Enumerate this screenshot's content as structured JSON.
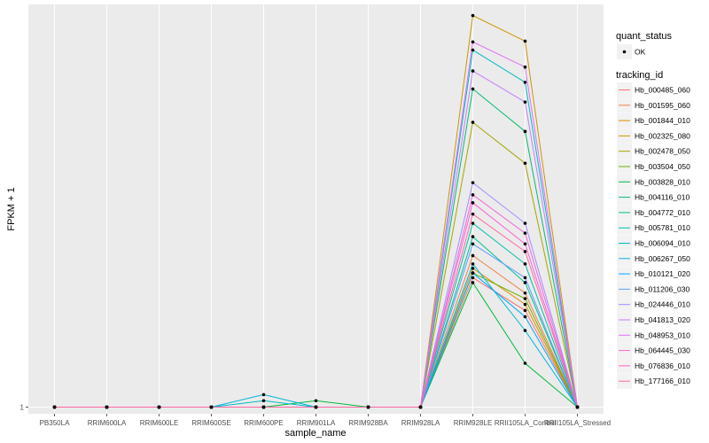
{
  "chart_data": {
    "type": "line",
    "xlabel": "sample_name",
    "ylabel": "FPKM + 1",
    "y_ticks": [
      "1"
    ],
    "categories": [
      "PB350LA",
      "RRIM600LA",
      "RRIM600LE",
      "RRIM600SE",
      "RRIM600PE",
      "RRIM901LA",
      "RRIM928BA",
      "RRIM928LA",
      "RRIM928LE",
      "RRII105LA_Control",
      "RRII105LA_Stressed"
    ],
    "grid": true,
    "legend_position": "right",
    "quant_status_legend": {
      "title": "quant_status",
      "entries": [
        "OK"
      ]
    },
    "tracking_legend_title": "tracking_id",
    "ylim": [
      0.95,
      22.0
    ],
    "series": [
      {
        "name": "Hb_000485_060",
        "color": "#F8766D",
        "values": [
          1,
          1,
          1,
          1,
          1.0,
          1.0,
          1,
          1,
          2.7,
          2.1,
          1
        ]
      },
      {
        "name": "Hb_001595_060",
        "color": "#EE8043",
        "values": [
          1,
          1,
          1,
          1,
          1.0,
          1.0,
          1,
          1,
          3.2,
          2.4,
          1
        ]
      },
      {
        "name": "Hb_001844_010",
        "color": "#E18A00",
        "values": [
          1,
          1,
          1,
          1,
          1.0,
          1.0,
          1,
          1,
          2.9,
          2.2,
          1
        ]
      },
      {
        "name": "Hb_002325_080",
        "color": "#C99800",
        "values": [
          1,
          1,
          1,
          1,
          1.0,
          1.0,
          1,
          1,
          20.2,
          16.6,
          1
        ]
      },
      {
        "name": "Hb_002478_050",
        "color": "#A3A500",
        "values": [
          1,
          1,
          1,
          1,
          1.0,
          1.0,
          1,
          1,
          8.9,
          6.5,
          1
        ]
      },
      {
        "name": "Hb_003504_050",
        "color": "#6BB100",
        "values": [
          1,
          1,
          1,
          1,
          1.0,
          1.0,
          1,
          1,
          2.8,
          2.3,
          1
        ]
      },
      {
        "name": "Hb_003828_010",
        "color": "#00BA38",
        "values": [
          1,
          1,
          1,
          1,
          1.0,
          1.05,
          1,
          1,
          2.6,
          1.4,
          1
        ]
      },
      {
        "name": "Hb_004116_010",
        "color": "#00BE6C",
        "values": [
          1,
          1,
          1,
          1,
          1.0,
          1.0,
          1,
          1,
          11.5,
          8.3,
          1
        ]
      },
      {
        "name": "Hb_004772_010",
        "color": "#00C08E",
        "values": [
          1,
          1,
          1,
          1,
          1.0,
          1.0,
          1,
          1,
          3.7,
          2.6,
          1
        ]
      },
      {
        "name": "Hb_005781_010",
        "color": "#00BFAB",
        "values": [
          1,
          1,
          1,
          1,
          1.0,
          1.0,
          1,
          1,
          4.1,
          3.0,
          1
        ]
      },
      {
        "name": "Hb_006094_010",
        "color": "#00BBC3",
        "values": [
          1,
          1,
          1,
          1,
          1.05,
          1.0,
          1,
          1,
          15.5,
          12.1,
          1
        ]
      },
      {
        "name": "Hb_006267_050",
        "color": "#00B4D8",
        "values": [
          1,
          1,
          1,
          1,
          1.1,
          1.0,
          1,
          1,
          3.0,
          1.8,
          1
        ]
      },
      {
        "name": "Hb_010121_020",
        "color": "#00A9FF",
        "values": [
          1,
          1,
          1,
          1,
          1.0,
          1.0,
          1,
          1,
          2.8,
          2.0,
          1
        ]
      },
      {
        "name": "Hb_011206_030",
        "color": "#619CFF",
        "values": [
          1,
          1,
          1,
          1,
          1.0,
          1.0,
          1,
          1,
          3.5,
          2.7,
          1
        ]
      },
      {
        "name": "Hb_024446_010",
        "color": "#9F8CFF",
        "values": [
          1,
          1,
          1,
          1,
          1.0,
          1.0,
          1,
          1,
          5.6,
          4.1,
          1
        ]
      },
      {
        "name": "Hb_041813_020",
        "color": "#C77CFF",
        "values": [
          1,
          1,
          1,
          1,
          1.0,
          1.0,
          1,
          1,
          13.2,
          10.4,
          1
        ]
      },
      {
        "name": "Hb_048953_010",
        "color": "#E36EF6",
        "values": [
          1,
          1,
          1,
          1,
          1.0,
          1.0,
          1,
          1,
          16.5,
          13.6,
          1
        ]
      },
      {
        "name": "Hb_064445_030",
        "color": "#F166D9",
        "values": [
          1,
          1,
          1,
          1,
          1.0,
          1.0,
          1,
          1,
          5.1,
          3.8,
          1
        ]
      },
      {
        "name": "Hb_076836_010",
        "color": "#FB61D7",
        "values": [
          1,
          1,
          1,
          1,
          1.0,
          1.0,
          1,
          1,
          4.8,
          3.5,
          1
        ]
      },
      {
        "name": "Hb_177166_010",
        "color": "#FF67A4",
        "values": [
          1,
          1,
          1,
          1,
          1.0,
          1.0,
          1,
          1,
          4.4,
          3.3,
          1
        ]
      }
    ]
  }
}
